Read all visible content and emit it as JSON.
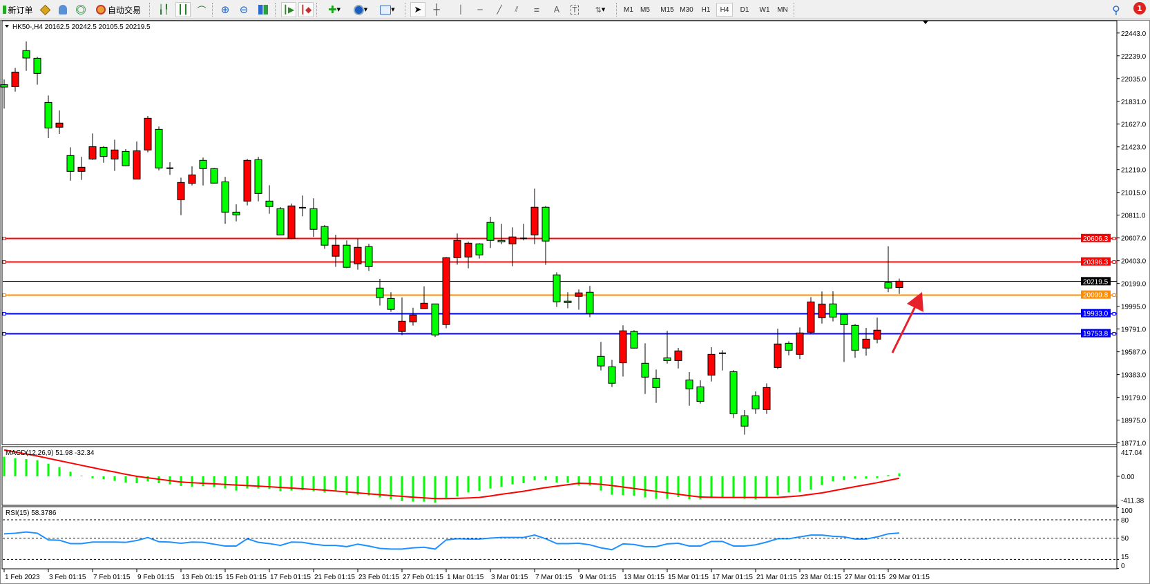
{
  "toolbar": {
    "new_order_label": "新订单",
    "auto_trading_label": "自动交易",
    "periods": [
      "M1",
      "M5",
      "M15",
      "M30",
      "H1",
      "H4",
      "D1",
      "W1",
      "MN"
    ],
    "active_period": "H4",
    "notification_count": "1",
    "drawing_tools": {
      "text_label": "A",
      "text_label_tool": "T"
    }
  },
  "chart": {
    "header": "HK50-,H4  20162.5 20242.5 20105.5 20219.5",
    "colors": {
      "bull": "#ff0000",
      "bear": "#00ff00",
      "wick": "#000000",
      "annotation_arrow": "#e8202a"
    },
    "price_axis_labels": [
      "22443.0",
      "22239.0",
      "22035.0",
      "21831.0",
      "21627.0",
      "21423.0",
      "21219.0",
      "21015.0",
      "20811.0",
      "20607.0",
      "20403.0",
      "20199.0",
      "19995.0",
      "19791.0",
      "19587.0",
      "19383.0",
      "19179.0",
      "18975.0",
      "18771.0"
    ],
    "hlines": [
      {
        "price": 20606.3,
        "label": "20606.3",
        "color": "#ff0000"
      },
      {
        "price": 20396.3,
        "label": "20396.3",
        "color": "#ff0000"
      },
      {
        "price": 20219.5,
        "label": "20219.5",
        "color": "#000000"
      },
      {
        "price": 20099.8,
        "label": "20099.8",
        "color": "#ff8c00"
      },
      {
        "price": 19933.0,
        "label": "19933.0",
        "color": "#0000ff"
      },
      {
        "price": 19753.8,
        "label": "19753.8",
        "color": "#0000ff"
      }
    ],
    "date_labels": [
      "1 Feb 2023",
      "3 Feb 01:15",
      "7 Feb 01:15",
      "9 Feb 01:15",
      "13 Feb 01:15",
      "15 Feb 01:15",
      "17 Feb 01:15",
      "21 Feb 01:15",
      "23 Feb 01:15",
      "27 Feb 01:15",
      "1 Mar 01:15",
      "3 Mar 01:15",
      "7 Mar 01:15",
      "9 Mar 01:15",
      "13 Mar 01:15",
      "15 Mar 01:15",
      "17 Mar 01:15",
      "21 Mar 01:15",
      "23 Mar 01:15",
      "27 Mar 01:15",
      "29 Mar 01:15"
    ]
  },
  "macd": {
    "label": "MACD(12,26,9) 51.98 -32.34",
    "axis_labels": [
      "417.04",
      "0.00",
      "-411.38"
    ],
    "colors": {
      "histogram": "#00ff00",
      "signal": "#ff0000"
    }
  },
  "rsi": {
    "label": "RSI(15) 58.3786",
    "axis_labels": [
      "100",
      "80",
      "50",
      "15",
      "0"
    ],
    "color": "#1e90ff"
  },
  "chart_data": {
    "type": "candlestick",
    "symbol": "HK50-",
    "timeframe": "H4",
    "ylim": [
      18771,
      22443
    ],
    "candles_ohlc": [
      [
        21980,
        22027,
        21766,
        21959
      ],
      [
        21963,
        22130,
        21918,
        22093
      ],
      [
        22285,
        22367,
        22104,
        22219
      ],
      [
        22217,
        22229,
        21980,
        22081
      ],
      [
        21821,
        21883,
        21502,
        21592
      ],
      [
        21599,
        21749,
        21539,
        21636
      ],
      [
        21345,
        21419,
        21120,
        21203
      ],
      [
        21203,
        21333,
        21127,
        21240
      ],
      [
        21314,
        21543,
        21306,
        21425
      ],
      [
        21419,
        21430,
        21281,
        21337
      ],
      [
        21314,
        21487,
        21207,
        21395
      ],
      [
        21382,
        21403,
        21250,
        21254
      ],
      [
        21135,
        21471,
        21135,
        21388
      ],
      [
        21395,
        21700,
        21374,
        21679
      ],
      [
        21580,
        21605,
        21213,
        21234
      ],
      [
        21232,
        21285,
        21172,
        21230
      ],
      [
        20949,
        21147,
        20811,
        21104
      ],
      [
        21096,
        21248,
        21077,
        21172
      ],
      [
        21302,
        21327,
        21077,
        21228
      ],
      [
        21228,
        21234,
        21094,
        21098
      ],
      [
        21110,
        21155,
        20733,
        20838
      ],
      [
        20838,
        20908,
        20756,
        20814
      ],
      [
        20937,
        21316,
        20898,
        21302
      ],
      [
        21308,
        21333,
        20935,
        21005
      ],
      [
        20937,
        21079,
        20824,
        20888
      ],
      [
        20869,
        20884,
        20634,
        20634
      ],
      [
        20603,
        20915,
        20595,
        20894
      ],
      [
        20878,
        20987,
        20801,
        20878
      ],
      [
        20869,
        20962,
        20616,
        20684
      ],
      [
        20709,
        20723,
        20509,
        20542
      ],
      [
        20443,
        20636,
        20348,
        20542
      ],
      [
        20542,
        20585,
        20336,
        20344
      ],
      [
        20375,
        20599,
        20323,
        20523
      ],
      [
        20529,
        20554,
        20311,
        20350
      ],
      [
        20158,
        20241,
        20002,
        20072
      ],
      [
        20065,
        20121,
        19946,
        19967
      ],
      [
        19769,
        20074,
        19736,
        19861
      ],
      [
        19855,
        19981,
        19822,
        19917
      ],
      [
        19973,
        20173,
        19973,
        20022
      ],
      [
        20016,
        20016,
        19719,
        19738
      ],
      [
        19831,
        20436,
        19798,
        20430
      ],
      [
        20430,
        20647,
        20368,
        20585
      ],
      [
        20436,
        20575,
        20335,
        20560
      ],
      [
        20554,
        20560,
        20422,
        20455
      ],
      [
        20746,
        20797,
        20517,
        20585
      ],
      [
        20585,
        20733,
        20552,
        20572
      ],
      [
        20554,
        20702,
        20354,
        20616
      ],
      [
        20603,
        20733,
        20585,
        20603
      ],
      [
        20634,
        21049,
        20552,
        20882
      ],
      [
        20882,
        20894,
        20366,
        20579
      ],
      [
        20276,
        20300,
        19989,
        20035
      ],
      [
        20041,
        20121,
        19977,
        20028
      ],
      [
        20084,
        20146,
        19964,
        20115
      ],
      [
        20121,
        20177,
        19897,
        19931
      ],
      [
        19546,
        19676,
        19420,
        19460
      ],
      [
        19453,
        19515,
        19271,
        19305
      ],
      [
        19488,
        19824,
        19365,
        19775
      ],
      [
        19769,
        19781,
        19616,
        19620
      ],
      [
        19484,
        19663,
        19209,
        19360
      ],
      [
        19348,
        19428,
        19129,
        19267
      ],
      [
        19533,
        19774,
        19481,
        19508
      ],
      [
        19508,
        19622,
        19438,
        19595
      ],
      [
        19335,
        19405,
        19104,
        19255
      ],
      [
        19273,
        19331,
        19123,
        19143
      ],
      [
        19378,
        19628,
        19321,
        19564
      ],
      [
        19574,
        19601,
        19420,
        19574
      ],
      [
        19409,
        19422,
        18993,
        19032
      ],
      [
        19014,
        19065,
        18845,
        18921
      ],
      [
        19193,
        19232,
        19030,
        19075
      ],
      [
        19069,
        19304,
        19030,
        19267
      ],
      [
        19446,
        19793,
        19432,
        19657
      ],
      [
        19663,
        19681,
        19556,
        19601
      ],
      [
        19564,
        19805,
        19521,
        19756
      ],
      [
        19762,
        20077,
        19749,
        20034
      ],
      [
        19892,
        20127,
        19840,
        20015
      ],
      [
        20016,
        20129,
        19859,
        19898
      ],
      [
        19923,
        19929,
        19496,
        19830
      ],
      [
        19824,
        19836,
        19533,
        19601
      ],
      [
        19620,
        19801,
        19552,
        19700
      ],
      [
        19700,
        19894,
        19663,
        19781
      ],
      [
        20207,
        20533,
        20121,
        20158
      ],
      [
        20162.5,
        20242.5,
        20105.5,
        20219.5
      ]
    ],
    "macd_histogram": [
      338,
      310,
      298,
      278,
      218,
      159,
      79,
      12,
      -32,
      -52,
      -79,
      -107,
      -119,
      -87,
      -119,
      -139,
      -167,
      -179,
      -171,
      -187,
      -210,
      -246,
      -210,
      -210,
      -218,
      -258,
      -246,
      -238,
      -258,
      -278,
      -250,
      -318,
      -318,
      -330,
      -365,
      -397,
      -429,
      -437,
      -437,
      -457,
      -369,
      -345,
      -278,
      -250,
      -210,
      -179,
      -139,
      -119,
      -67,
      -60,
      -107,
      -111,
      -159,
      -159,
      -246,
      -318,
      -326,
      -337,
      -365,
      -389,
      -389,
      -357,
      -397,
      -397,
      -377,
      -377,
      -381,
      -389,
      -397,
      -357,
      -326,
      -278,
      -270,
      -230,
      -151,
      -87,
      -60,
      -40,
      -40,
      -32,
      20,
      51.98
    ],
    "macd_signal": [
      456,
      420,
      385,
      350,
      310,
      270,
      230,
      190,
      150,
      110,
      75,
      35,
      0,
      -25,
      -50,
      -75,
      -99,
      -110,
      -120,
      -130,
      -140,
      -150,
      -159,
      -170,
      -180,
      -192,
      -203,
      -215,
      -226,
      -238,
      -254,
      -270,
      -286,
      -302,
      -318,
      -332,
      -345,
      -360,
      -372,
      -385,
      -385,
      -380,
      -374,
      -365,
      -340,
      -310,
      -285,
      -258,
      -225,
      -195,
      -170,
      -145,
      -119,
      -125,
      -139,
      -160,
      -185,
      -210,
      -235,
      -260,
      -286,
      -310,
      -335,
      -357,
      -362,
      -365,
      -365,
      -365,
      -365,
      -365,
      -365,
      -352,
      -337,
      -312,
      -286,
      -250,
      -215,
      -179,
      -145,
      -111,
      -72,
      -32.34
    ],
    "macd_ylim": [
      -411.38,
      417.04
    ],
    "rsi_values": [
      57,
      58,
      60,
      58,
      47,
      46.5,
      41,
      41,
      43.5,
      43.5,
      43.5,
      43,
      46,
      51,
      44,
      43.5,
      41.5,
      43.5,
      43,
      40,
      37,
      37,
      49,
      43,
      41,
      38,
      43.5,
      43,
      40,
      38,
      38,
      36,
      40,
      37,
      33,
      32,
      32,
      34,
      35,
      32,
      47,
      49,
      48.5,
      48.5,
      50,
      51,
      51,
      51,
      55,
      49,
      41,
      41,
      41.5,
      39,
      34,
      31,
      40.5,
      39.5,
      36,
      36,
      40.5,
      41.5,
      37,
      37,
      44.5,
      44.5,
      37,
      37,
      39,
      43.5,
      49,
      49,
      52,
      55,
      55,
      53,
      52,
      48.5,
      48.5,
      52,
      57,
      58.3786
    ],
    "rsi_levels": [
      80,
      50,
      15
    ],
    "rsi_ylim": [
      0,
      100
    ]
  }
}
